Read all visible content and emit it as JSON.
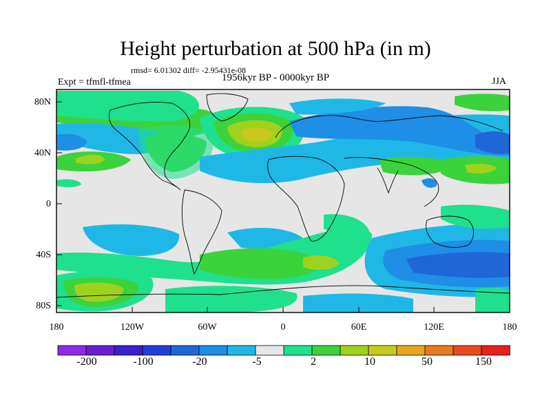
{
  "title": "Height perturbation at 500 hPa (in m)",
  "stats_line": "rmsd= 6.01302 diff= -2.95431e-08",
  "experiment_label": "Expt = tfmfl-tfmea",
  "period_label": "1956kyr BP - 0000kyr BP",
  "season_label": "JJA",
  "map_axes": {
    "lat_ticks": [
      "80N",
      "40N",
      "0",
      "40S",
      "80S"
    ],
    "lon_ticks": [
      "180",
      "120W",
      "60W",
      "0",
      "60E",
      "120E",
      "180"
    ]
  },
  "colorbar": {
    "tick_labels": [
      "-200",
      "-100",
      "-20",
      "-5",
      "2",
      "10",
      "50",
      "150"
    ],
    "colors": [
      "#8c2be2",
      "#6a1fd6",
      "#3a1fd0",
      "#1f3fd6",
      "#1f66d6",
      "#1f8ee6",
      "#1fb8e6",
      "#e6e6e6",
      "#1fe08c",
      "#3cd23c",
      "#9ed21f",
      "#c8c81f",
      "#e6a61f",
      "#e67a1f",
      "#e64a1f",
      "#e61f1f"
    ]
  },
  "colors": {
    "background_field": "#e6e6e6",
    "positive_light": "#1fe08c",
    "positive_mid": "#3cd23c",
    "positive_strong": "#9ed21f",
    "positive_peak": "#c8c81f",
    "negative_light": "#1fb8e6",
    "negative_mid": "#1f8ee6",
    "negative_strong": "#1f66d6"
  }
}
